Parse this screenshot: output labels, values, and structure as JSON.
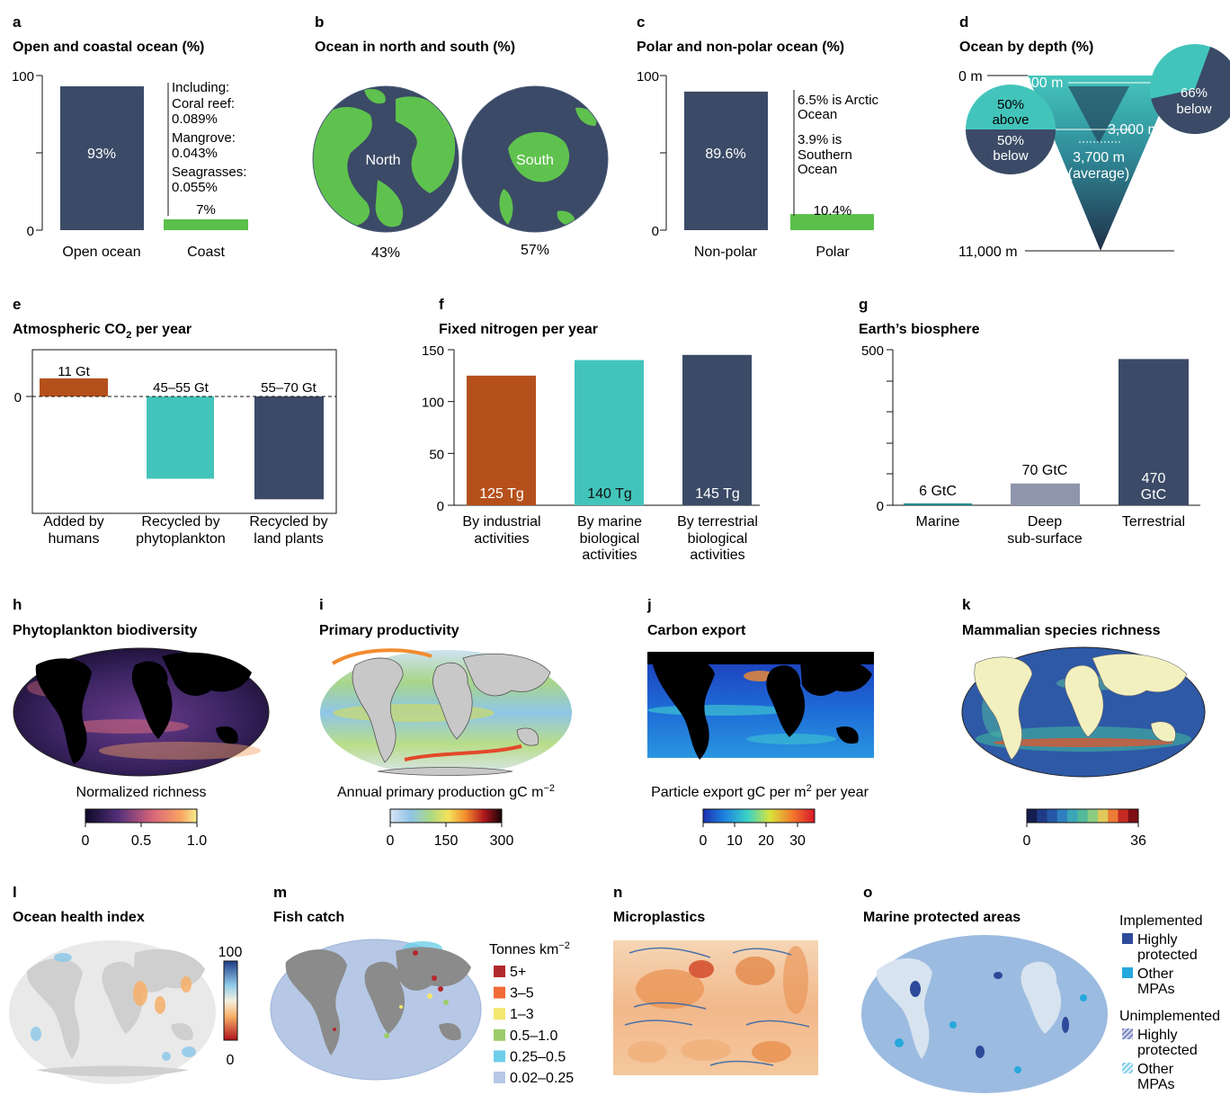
{
  "colors": {
    "navy": "#3b4a66",
    "green": "#5bbf4a",
    "teal": "#43c4bb",
    "rust": "#b5501c",
    "gray": "#8e96ae",
    "land": "#5fc24e"
  },
  "panels": {
    "a": {
      "letter": "a",
      "title": "Open and coastal ocean (%)",
      "yticks": [
        "100",
        "0"
      ],
      "bars": [
        {
          "category": "Open ocean",
          "value": 93,
          "label": "93%"
        },
        {
          "category": "Coast",
          "value": 7,
          "label": "7%"
        }
      ],
      "notes": [
        "Including:",
        "Coral reef:",
        "0.089%",
        "Mangrove:",
        "0.043%",
        "Seagrasses:",
        "0.055%"
      ]
    },
    "b": {
      "letter": "b",
      "title": "Ocean in north and south (%)",
      "north": {
        "label": "North",
        "value": "43%"
      },
      "south": {
        "label": "South",
        "value": "57%"
      }
    },
    "c": {
      "letter": "c",
      "title": "Polar and non-polar ocean (%)",
      "yticks": [
        "100",
        "0"
      ],
      "bars": [
        {
          "category": "Non-polar",
          "value": 89.6,
          "label": "89.6%"
        },
        {
          "category": "Polar",
          "value": 10.4,
          "label": "10.4%"
        }
      ],
      "notes": [
        "6.5% is Arctic",
        "Ocean",
        "3.9% is",
        "Southern",
        "Ocean"
      ]
    },
    "d": {
      "letter": "d",
      "title": "Ocean by depth (%)",
      "depths": {
        "top": "0 m",
        "d200": "200 m",
        "d3000": "3,000 m",
        "avg": "3,700 m",
        "avg_note": "(average)",
        "bottom": "11,000 m"
      },
      "left_circle": {
        "above_pct": "50%",
        "above": "above",
        "below_pct": "50%",
        "below": "below"
      },
      "right_circle": {
        "pct": "66%",
        "below": "below"
      }
    },
    "e": {
      "letter": "e",
      "title_main": "Atmospheric CO",
      "title_sub": "2",
      "title_end": " per year",
      "ytick": "0",
      "bars": [
        {
          "category": [
            "Added by",
            "humans"
          ],
          "label": "11 Gt"
        },
        {
          "category": [
            "Recycled by",
            "phytoplankton"
          ],
          "label": "45–55 Gt"
        },
        {
          "category": [
            "Recycled by",
            "land plants"
          ],
          "label": "55–70 Gt"
        }
      ]
    },
    "f": {
      "letter": "f",
      "title": "Fixed nitrogen per year",
      "yticks": [
        "150",
        "100",
        "50",
        "0"
      ],
      "bars": [
        {
          "category": [
            "By industrial",
            "activities"
          ],
          "label": "125 Tg"
        },
        {
          "category": [
            "By marine",
            "biological",
            "activities"
          ],
          "label": "140 Tg"
        },
        {
          "category": [
            "By terrestrial",
            "biological",
            "activities"
          ],
          "label": "145 Tg"
        }
      ]
    },
    "g": {
      "letter": "g",
      "title": "Earth’s biosphere",
      "yticks": [
        "500",
        "0"
      ],
      "bars": [
        {
          "category": [
            "Marine"
          ],
          "label": [
            "6 GtC"
          ]
        },
        {
          "category": [
            "Deep",
            "sub-surface"
          ],
          "label": [
            "70 GtC"
          ]
        },
        {
          "category": [
            "Terrestrial"
          ],
          "label": [
            "470",
            "GtC"
          ]
        }
      ]
    },
    "h": {
      "letter": "h",
      "title": "Phytoplankton biodiversity",
      "caption": "Normalized richness",
      "ticks": [
        "0",
        "0.5",
        "1.0"
      ]
    },
    "i": {
      "letter": "i",
      "title": "Primary productivity",
      "caption": "Annual primary production gC m",
      "caption_sup": "−2",
      "ticks": [
        "0",
        "150",
        "300"
      ]
    },
    "j": {
      "letter": "j",
      "title": "Carbon export",
      "caption_a": "Particle export gC per m",
      "caption_sup": "2",
      "caption_b": " per year",
      "ticks": [
        "0",
        "10",
        "20",
        "30"
      ]
    },
    "k": {
      "letter": "k",
      "title": "Mammalian species richness",
      "ticks": [
        "0",
        "36"
      ]
    },
    "l": {
      "letter": "l",
      "title": "Ocean health index",
      "ticks": [
        "100",
        "0"
      ]
    },
    "m": {
      "letter": "m",
      "title": "Fish catch",
      "legend_title": "Tonnes km",
      "legend_sup": "−2",
      "legend": [
        {
          "label": "5+",
          "color": "#b3282d"
        },
        {
          "label": "3–5",
          "color": "#f26a36"
        },
        {
          "label": "1–3",
          "color": "#f4e76e"
        },
        {
          "label": "0.5–1.0",
          "color": "#9ccd6a"
        },
        {
          "label": "0.25–0.5",
          "color": "#6fcfe8"
        },
        {
          "label": "0.02–0.25",
          "color": "#b6c8e6"
        }
      ]
    },
    "n": {
      "letter": "n",
      "title": "Microplastics"
    },
    "o": {
      "letter": "o",
      "title": "Marine protected areas",
      "impl_title": "Implemented",
      "impl": [
        {
          "lines": [
            "Highly",
            "protected"
          ],
          "color": "#2d4a9a"
        },
        {
          "lines": [
            "Other",
            "MPAs"
          ],
          "color": "#26a8dc"
        }
      ],
      "unimpl_title": "Unimplemented",
      "unimpl": [
        {
          "lines": [
            "Highly",
            "protected"
          ],
          "color": "#6f7fc0"
        },
        {
          "lines": [
            "Other",
            "MPAs"
          ],
          "color": "#6cc6e6"
        }
      ]
    }
  },
  "chart_data": [
    {
      "panel": "a",
      "type": "bar",
      "title": "Open and coastal ocean (%)",
      "categories": [
        "Open ocean",
        "Coast"
      ],
      "values": [
        93,
        7
      ],
      "ylim": [
        0,
        100
      ],
      "annotations": [
        "Including:",
        "Coral reef:",
        "0.089%",
        "Mangrove:",
        "0.043%",
        "Seagrasses:",
        "0.055%"
      ]
    },
    {
      "panel": "b",
      "type": "pie",
      "title": "Ocean in north and south (%)",
      "categories": [
        "North",
        "South"
      ],
      "values": [
        43,
        57
      ]
    },
    {
      "panel": "c",
      "type": "bar",
      "title": "Polar and non-polar ocean (%)",
      "categories": [
        "Non-polar",
        "Polar"
      ],
      "values": [
        89.6,
        10.4
      ],
      "ylim": [
        0,
        100
      ],
      "annotations": [
        "6.5% is Arctic",
        "Ocean",
        "3.9% is",
        "Southern",
        "Ocean"
      ]
    },
    {
      "panel": "d",
      "type": "other",
      "title": "Ocean by depth (%)",
      "depths_m": [
        0,
        200,
        3000,
        3700,
        11000
      ],
      "shares": [
        {
          "range": "above 3,700 m",
          "value": 50
        },
        {
          "range": "below 3,700 m",
          "value": 50
        },
        {
          "range": "below 3,000 m",
          "value": 66
        }
      ]
    },
    {
      "panel": "e",
      "type": "bar",
      "title": "Atmospheric CO2 per year",
      "categories": [
        "Added by humans",
        "Recycled by phytoplankton",
        "Recycled by land plants"
      ],
      "values": [
        11,
        -50,
        -62.5
      ],
      "labels": [
        "11 Gt",
        "45–55 Gt",
        "55–70 Gt"
      ]
    },
    {
      "panel": "f",
      "type": "bar",
      "title": "Fixed nitrogen per year",
      "categories": [
        "By industrial activities",
        "By marine biological activities",
        "By terrestrial biological activities"
      ],
      "values": [
        125,
        140,
        145
      ],
      "labels": [
        "125 Tg",
        "140 Tg",
        "145 Tg"
      ],
      "ylim": [
        0,
        150
      ]
    },
    {
      "panel": "g",
      "type": "bar",
      "title": "Earth’s biosphere",
      "categories": [
        "Marine",
        "Deep sub-surface",
        "Terrestrial"
      ],
      "values": [
        6,
        70,
        470
      ],
      "labels": [
        "6 GtC",
        "70 GtC",
        "470 GtC"
      ],
      "ylim": [
        0,
        500
      ]
    },
    {
      "panel": "h",
      "type": "heatmap",
      "title": "Phytoplankton biodiversity",
      "colorbar": {
        "label": "Normalized richness",
        "range": [
          0,
          1.0
        ]
      }
    },
    {
      "panel": "i",
      "type": "heatmap",
      "title": "Primary productivity",
      "colorbar": {
        "label": "Annual primary production gC m−2",
        "range": [
          0,
          300
        ]
      }
    },
    {
      "panel": "j",
      "type": "heatmap",
      "title": "Carbon export",
      "colorbar": {
        "label": "Particle export gC per m2 per year",
        "range": [
          0,
          30
        ]
      }
    },
    {
      "panel": "k",
      "type": "heatmap",
      "title": "Mammalian species richness",
      "colorbar": {
        "range": [
          0,
          36
        ]
      }
    },
    {
      "panel": "l",
      "type": "heatmap",
      "title": "Ocean health index",
      "colorbar": {
        "range": [
          0,
          100
        ]
      }
    },
    {
      "panel": "m",
      "type": "heatmap",
      "title": "Fish catch",
      "legend_title": "Tonnes km−2",
      "classes": [
        "5+",
        "3–5",
        "1–3",
        "0.5–1.0",
        "0.25–0.5",
        "0.02–0.25"
      ]
    },
    {
      "panel": "n",
      "type": "heatmap",
      "title": "Microplastics"
    },
    {
      "panel": "o",
      "type": "heatmap",
      "title": "Marine protected areas",
      "classes": [
        "Implemented: Highly protected",
        "Implemented: Other MPAs",
        "Unimplemented: Highly protected",
        "Unimplemented: Other MPAs"
      ]
    }
  ]
}
